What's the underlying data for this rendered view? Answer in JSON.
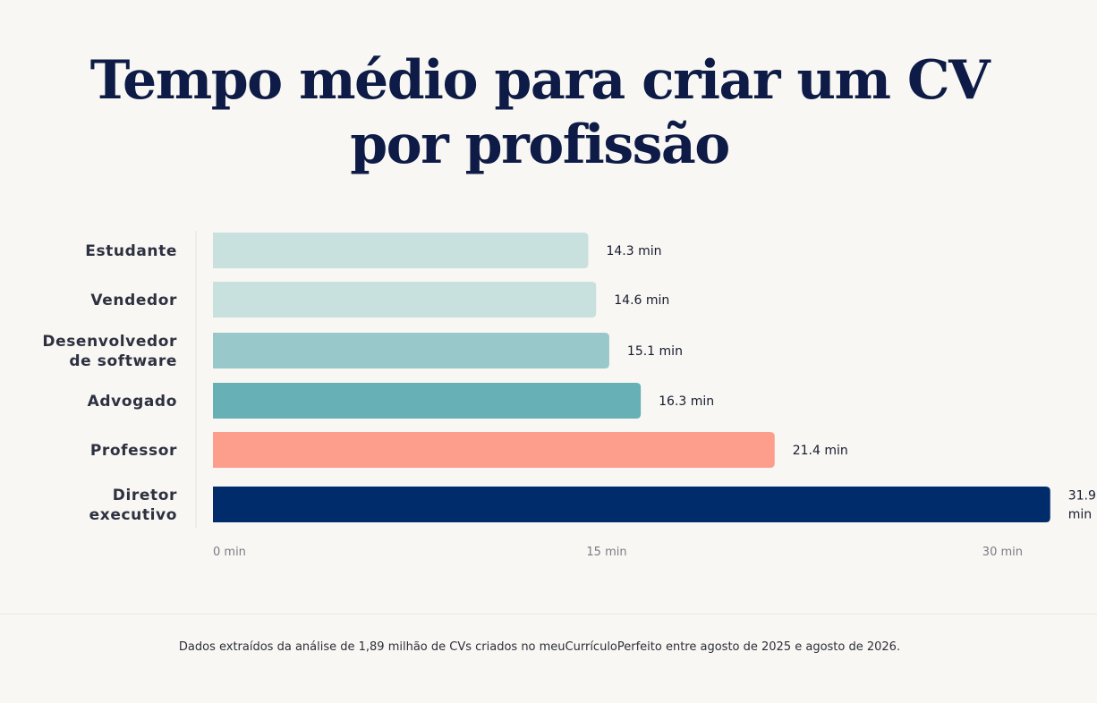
{
  "header": {
    "title_line1": "Tempo médio para criar um CV",
    "title_line2": "por profissão"
  },
  "chart_data": {
    "type": "bar",
    "orientation": "horizontal",
    "categories": [
      [
        "Estudante"
      ],
      [
        "Vendedor"
      ],
      [
        "Desenvolvedor",
        "de software"
      ],
      [
        "Advogado"
      ],
      [
        "Professor"
      ],
      [
        "Diretor",
        "executivo"
      ]
    ],
    "values": [
      14.3,
      14.6,
      15.1,
      16.3,
      21.4,
      31.9
    ],
    "value_labels": [
      [
        "14.3 min"
      ],
      [
        "14.6 min"
      ],
      [
        "15.1 min"
      ],
      [
        "16.3 min"
      ],
      [
        "21.4 min"
      ],
      [
        "31.9",
        "min"
      ]
    ],
    "bar_colors": [
      "#c8e0de",
      "#c8e0de",
      "#99c8ca",
      "#67b0b6",
      "#fd9d8b",
      "#002c6b"
    ],
    "xlim": [
      0,
      30
    ],
    "xticks": [
      0,
      15,
      30
    ],
    "xtick_labels": [
      "0 min",
      "15 min",
      "30 min"
    ],
    "grid": false,
    "legend": "none"
  },
  "footer": {
    "source_note": "Dados extraídos da análise de 1,89 milhão de CVs criados no meuCurrículoPerfeito entre agosto de 2025 e agosto de 2026."
  }
}
